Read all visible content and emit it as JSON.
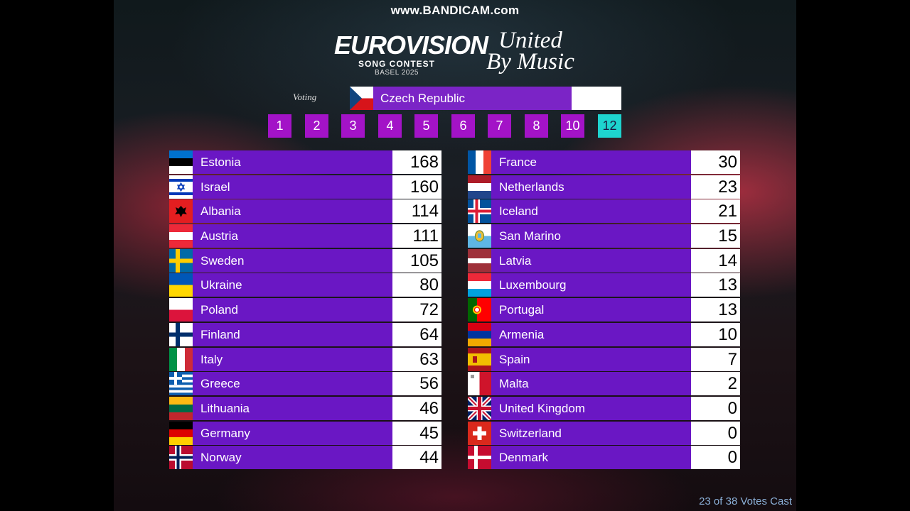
{
  "watermark": "www.BANDICAM.com",
  "logo": {
    "eurovision": "EUROVISION",
    "song_contest": "SONG CONTEST",
    "host": "BASEL 2025",
    "slogan_line1": "United",
    "slogan_line2": "By Music"
  },
  "voting": {
    "label": "Voting",
    "country": "Czech Republic",
    "flag": "czech-republic-flag"
  },
  "points": [
    "1",
    "2",
    "3",
    "4",
    "5",
    "6",
    "7",
    "8",
    "10",
    "12"
  ],
  "active_point": "12",
  "scoreboard": {
    "left": [
      {
        "country": "Estonia",
        "score": "168",
        "flag": "estonia"
      },
      {
        "country": "Israel",
        "score": "160",
        "flag": "israel"
      },
      {
        "country": "Albania",
        "score": "114",
        "flag": "albania"
      },
      {
        "country": "Austria",
        "score": "111",
        "flag": "austria"
      },
      {
        "country": "Sweden",
        "score": "105",
        "flag": "sweden"
      },
      {
        "country": "Ukraine",
        "score": "80",
        "flag": "ukraine"
      },
      {
        "country": "Poland",
        "score": "72",
        "flag": "poland"
      },
      {
        "country": "Finland",
        "score": "64",
        "flag": "finland"
      },
      {
        "country": "Italy",
        "score": "63",
        "flag": "italy"
      },
      {
        "country": "Greece",
        "score": "56",
        "flag": "greece"
      },
      {
        "country": "Lithuania",
        "score": "46",
        "flag": "lithuania"
      },
      {
        "country": "Germany",
        "score": "45",
        "flag": "germany"
      },
      {
        "country": "Norway",
        "score": "44",
        "flag": "norway"
      }
    ],
    "right": [
      {
        "country": "France",
        "score": "30",
        "flag": "france"
      },
      {
        "country": "Netherlands",
        "score": "23",
        "flag": "netherlands"
      },
      {
        "country": "Iceland",
        "score": "21",
        "flag": "iceland"
      },
      {
        "country": "San Marino",
        "score": "15",
        "flag": "san-marino"
      },
      {
        "country": "Latvia",
        "score": "14",
        "flag": "latvia"
      },
      {
        "country": "Luxembourg",
        "score": "13",
        "flag": "luxembourg"
      },
      {
        "country": "Portugal",
        "score": "13",
        "flag": "portugal"
      },
      {
        "country": "Armenia",
        "score": "10",
        "flag": "armenia"
      },
      {
        "country": "Spain",
        "score": "7",
        "flag": "spain"
      },
      {
        "country": "Malta",
        "score": "2",
        "flag": "malta"
      },
      {
        "country": "United Kingdom",
        "score": "0",
        "flag": "united-kingdom"
      },
      {
        "country": "Switzerland",
        "score": "0",
        "flag": "switzerland"
      },
      {
        "country": "Denmark",
        "score": "0",
        "flag": "denmark"
      }
    ]
  },
  "footer": "23 of 38 Votes Cast",
  "colors": {
    "row_purple": "#6a17c4",
    "points_magenta": "#a313c7",
    "points_active_cyan": "#1ed4cf",
    "footer_blue": "#8bb0d8"
  }
}
